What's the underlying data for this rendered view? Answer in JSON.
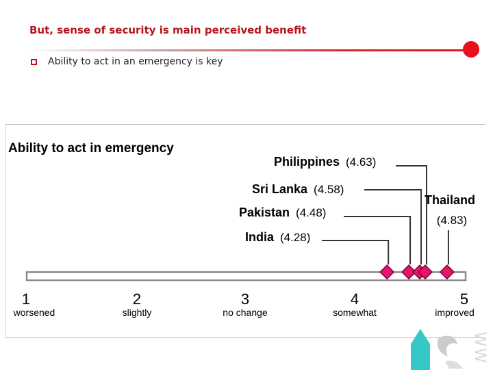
{
  "slide": {
    "title": "But, sense of security is main perceived benefit",
    "bullet": "Ability to act in an emergency is key",
    "deco_text": "WW"
  },
  "colors": {
    "title": "#b8141c",
    "accent": "#e8101c",
    "marker": "#e6146e",
    "deco": "#36c8c8"
  },
  "chart_data": {
    "type": "scatter",
    "title": "Ability to act in emergency",
    "xlim": [
      1,
      5
    ],
    "ticks": [
      {
        "value": 1,
        "number": "1",
        "label": "worsened"
      },
      {
        "value": 2,
        "number": "2",
        "label": "slightly"
      },
      {
        "value": 3,
        "number": "3",
        "label": "no change"
      },
      {
        "value": 4,
        "number": "4",
        "label": "somewhat"
      },
      {
        "value": 5,
        "number": "5",
        "label": "improved"
      }
    ],
    "points": [
      {
        "name": "India",
        "value": 4.28,
        "value_label": "(4.28)"
      },
      {
        "name": "Pakistan",
        "value": 4.48,
        "value_label": "(4.48)"
      },
      {
        "name": "Sri Lanka",
        "value": 4.58,
        "value_label": "(4.58)"
      },
      {
        "name": "Philippines",
        "value": 4.63,
        "value_label": "(4.63)"
      },
      {
        "name": "Thailand",
        "value": 4.83,
        "value_label": "(4.83)"
      }
    ]
  }
}
